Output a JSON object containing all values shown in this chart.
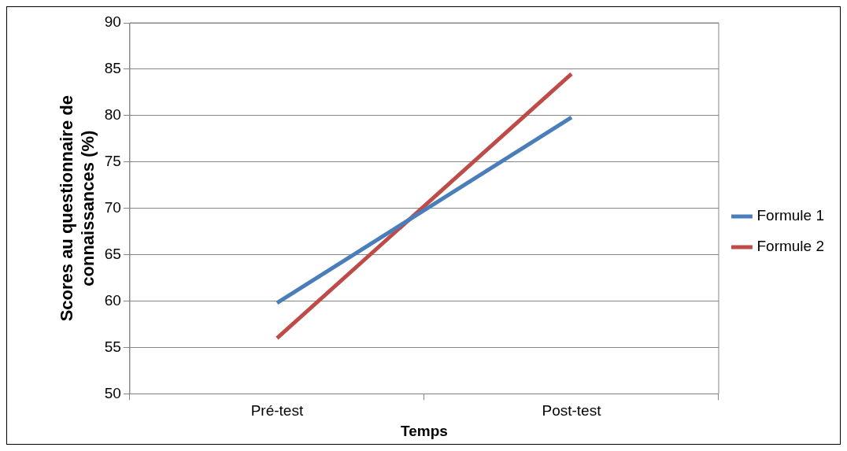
{
  "chart_data": {
    "type": "line",
    "xlabel": "Temps",
    "ylabel": "Scores au questionnaire de connaissances (%)",
    "categories": [
      "Pré-test",
      "Post-test"
    ],
    "series": [
      {
        "name": "Formule 1",
        "color": "#4a7ebb",
        "values": [
          59.8,
          79.8
        ]
      },
      {
        "name": "Formule 2",
        "color": "#be4b48",
        "values": [
          56,
          84.5
        ]
      }
    ],
    "ylim": [
      50,
      90
    ],
    "yticks": [
      50,
      55,
      60,
      65,
      70,
      75,
      80,
      85,
      90
    ],
    "grid": "y",
    "legend": "right",
    "marker": "none",
    "line_style": "solid"
  }
}
